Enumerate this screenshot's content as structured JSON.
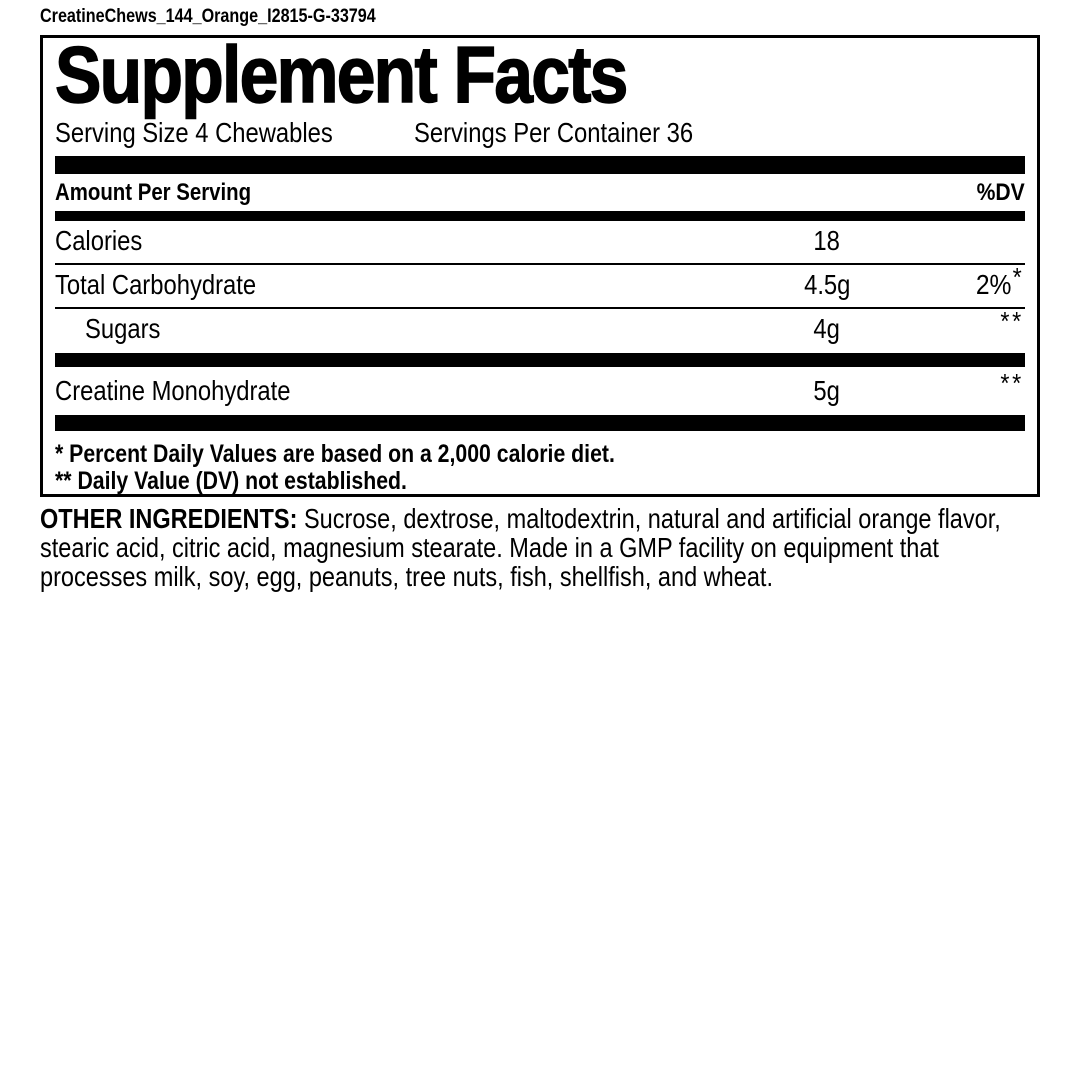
{
  "file_id": "CreatineChews_144_Orange_I2815-G-33794",
  "colors": {
    "ink": "#000000",
    "paper": "#ffffff"
  },
  "panel": {
    "title": "Supplement Facts",
    "serving_size": "Serving Size 4 Chewables",
    "servings_per_container": "Servings Per Container 36",
    "amount_header": "Amount Per Serving",
    "dv_header": "%DV",
    "rows": [
      {
        "label": "Calories",
        "amount": "18",
        "dv": "",
        "dv_star": ""
      },
      {
        "label": "Total Carbohydrate",
        "amount": "4.5g",
        "dv": "2%",
        "dv_star": "*"
      },
      {
        "label": "Sugars",
        "amount": "4g",
        "dv": "",
        "dv_star": "**"
      },
      {
        "label": "Creatine Monohydrate",
        "amount": "5g",
        "dv": "",
        "dv_star": "**"
      }
    ],
    "footnotes": [
      "* Percent Daily Values are based on a 2,000 calorie diet.",
      "** Daily Value (DV) not established."
    ]
  },
  "ingredients": {
    "heading": "OTHER INGREDIENTS:",
    "text": "Sucrose, dextrose, maltodextrin, natural and artificial orange flavor, stearic acid, citric acid, magnesium stearate. Made in a GMP facility on equipment that processes milk, soy, egg, peanuts, tree nuts, fish, shellfish, and wheat."
  }
}
